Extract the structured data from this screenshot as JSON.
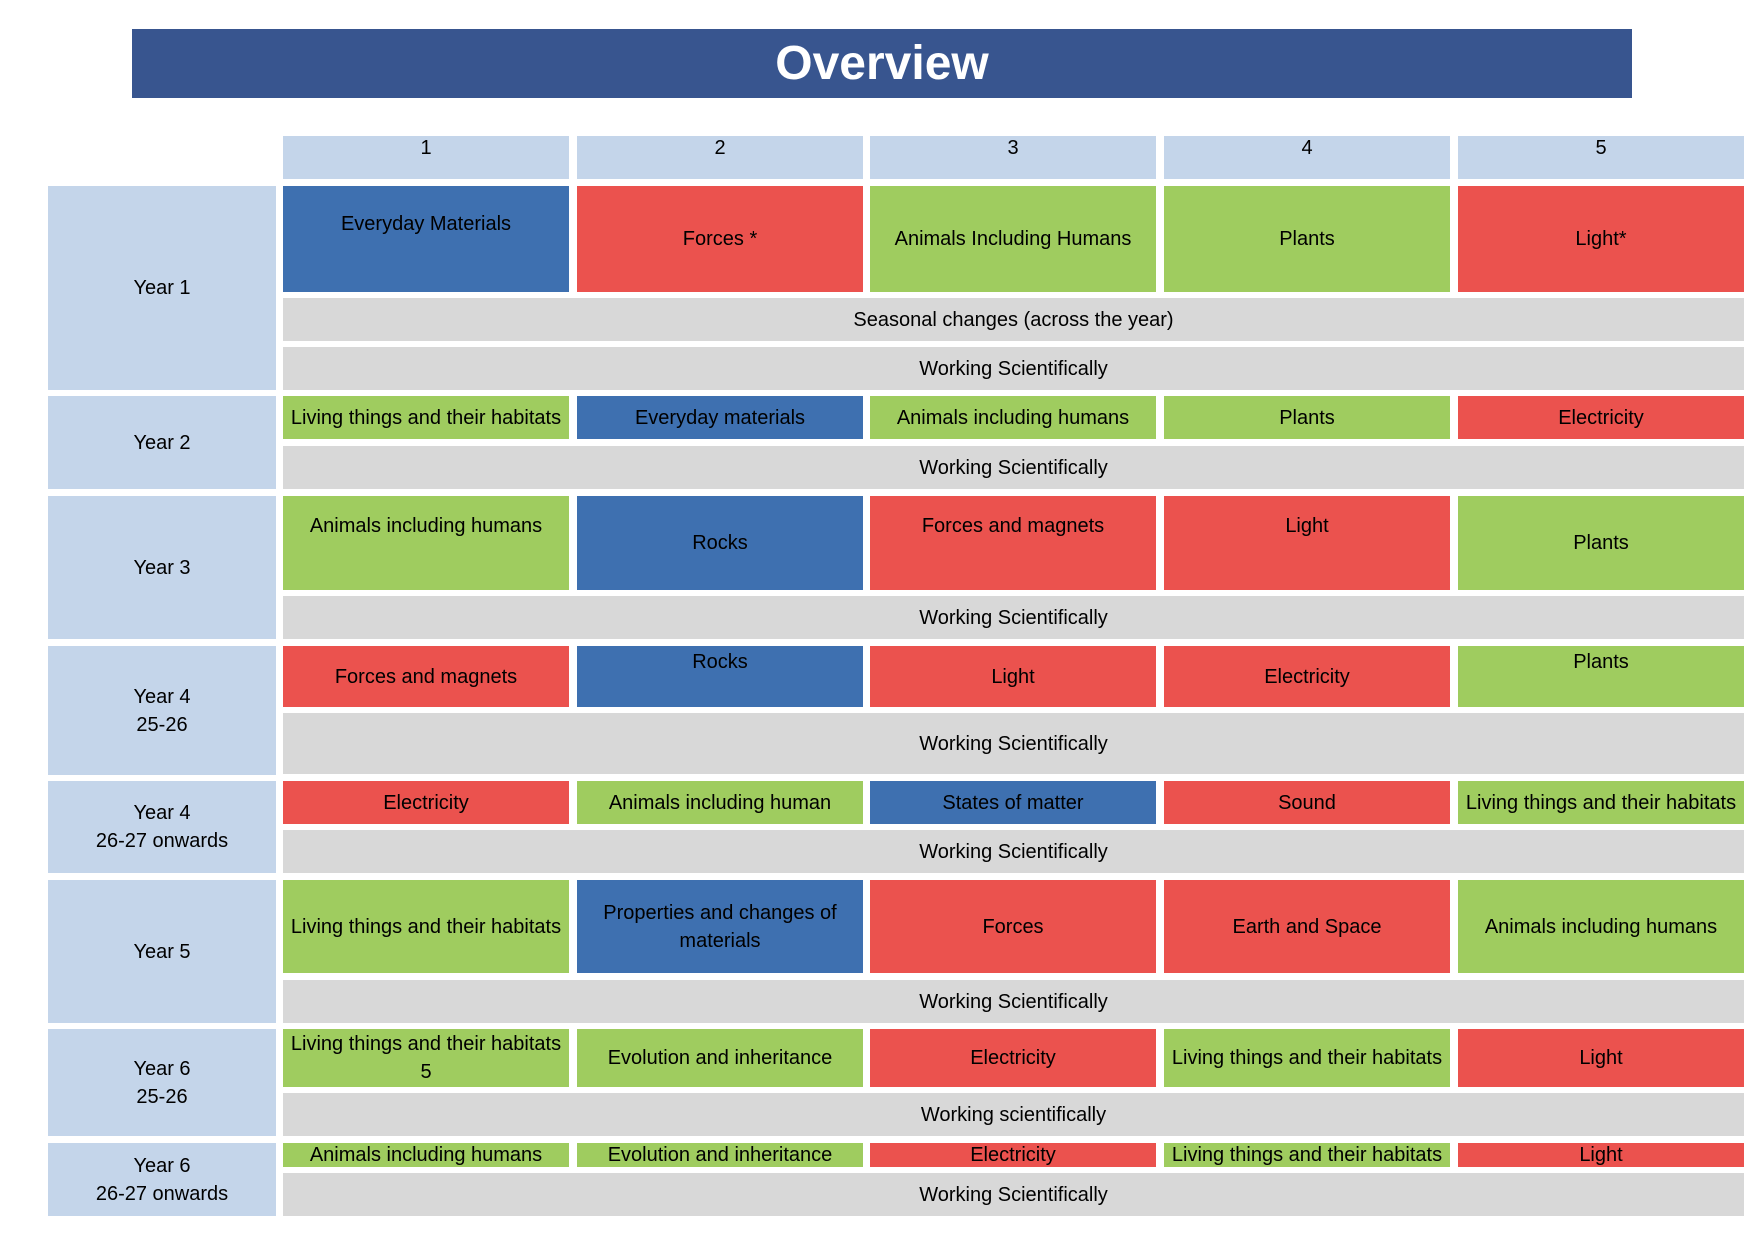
{
  "title": "Overview",
  "columns": [
    "1",
    "2",
    "3",
    "4",
    "5"
  ],
  "colors": {
    "title_bg": "#38558f",
    "header_bg": "#c4d5ea",
    "green": "#9fcc5f",
    "red": "#eb524e",
    "blue": "#3e70b0",
    "grey": "#d8d8d8"
  },
  "years": [
    {
      "label": [
        "Year 1"
      ],
      "topics": [
        {
          "text": "Everyday Materials",
          "color": "blue"
        },
        {
          "text": "Forces *",
          "color": "red"
        },
        {
          "text": "Animals Including Humans",
          "color": "green"
        },
        {
          "text": "Plants",
          "color": "green"
        },
        {
          "text": "Light*",
          "color": "red"
        }
      ],
      "bands": [
        "Seasonal changes (across the year)",
        "Working Scientifically"
      ]
    },
    {
      "label": [
        "Year 2"
      ],
      "topics": [
        {
          "text": "Living things and their habitats",
          "color": "green"
        },
        {
          "text": "Everyday materials",
          "color": "blue"
        },
        {
          "text": "Animals including humans",
          "color": "green"
        },
        {
          "text": "Plants",
          "color": "green"
        },
        {
          "text": "Electricity",
          "color": "red"
        }
      ],
      "bands": [
        "Working Scientifically"
      ]
    },
    {
      "label": [
        "Year 3"
      ],
      "topics": [
        {
          "text": "Animals including humans",
          "color": "green"
        },
        {
          "text": "Rocks",
          "color": "blue"
        },
        {
          "text": "Forces and magnets",
          "color": "red"
        },
        {
          "text": "Light",
          "color": "red"
        },
        {
          "text": "Plants",
          "color": "green"
        }
      ],
      "bands": [
        "Working Scientifically"
      ]
    },
    {
      "label": [
        "Year 4",
        "25-26"
      ],
      "topics": [
        {
          "text": "Forces and magnets",
          "color": "red"
        },
        {
          "text": "Rocks",
          "color": "blue"
        },
        {
          "text": "Light",
          "color": "red"
        },
        {
          "text": "Electricity",
          "color": "red"
        },
        {
          "text": "Plants",
          "color": "green"
        }
      ],
      "bands": [
        "Working Scientifically"
      ]
    },
    {
      "label": [
        "Year 4",
        "26-27 onwards"
      ],
      "topics": [
        {
          "text": "Electricity",
          "color": "red"
        },
        {
          "text": "Animals including human",
          "color": "green"
        },
        {
          "text": "States of matter",
          "color": "blue"
        },
        {
          "text": "Sound",
          "color": "red"
        },
        {
          "text": "Living things and their habitats",
          "color": "green"
        }
      ],
      "bands": [
        "Working Scientifically"
      ]
    },
    {
      "label": [
        "Year 5"
      ],
      "topics": [
        {
          "text": "Living things and their habitats",
          "color": "green"
        },
        {
          "text": "Properties and changes of materials",
          "color": "blue"
        },
        {
          "text": "Forces",
          "color": "red"
        },
        {
          "text": "Earth and Space",
          "color": "red"
        },
        {
          "text": "Animals including humans",
          "color": "green"
        }
      ],
      "bands": [
        "Working Scientifically"
      ]
    },
    {
      "label": [
        "Year 6",
        "25-26"
      ],
      "topics": [
        {
          "text": "Living things and their habitats 5",
          "color": "green"
        },
        {
          "text": "Evolution and inheritance",
          "color": "green"
        },
        {
          "text": "Electricity",
          "color": "red"
        },
        {
          "text": "Living things and their habitats",
          "color": "green"
        },
        {
          "text": "Light",
          "color": "red"
        }
      ],
      "bands": [
        "Working scientifically"
      ]
    },
    {
      "label": [
        "Year 6",
        "26-27 onwards"
      ],
      "topics": [
        {
          "text": "Animals including humans",
          "color": "green"
        },
        {
          "text": "Evolution and inheritance",
          "color": "green"
        },
        {
          "text": "Electricity",
          "color": "red"
        },
        {
          "text": "Living things and their habitats",
          "color": "green"
        },
        {
          "text": "Light",
          "color": "red"
        }
      ],
      "bands": [
        "Working Scientifically"
      ]
    }
  ]
}
